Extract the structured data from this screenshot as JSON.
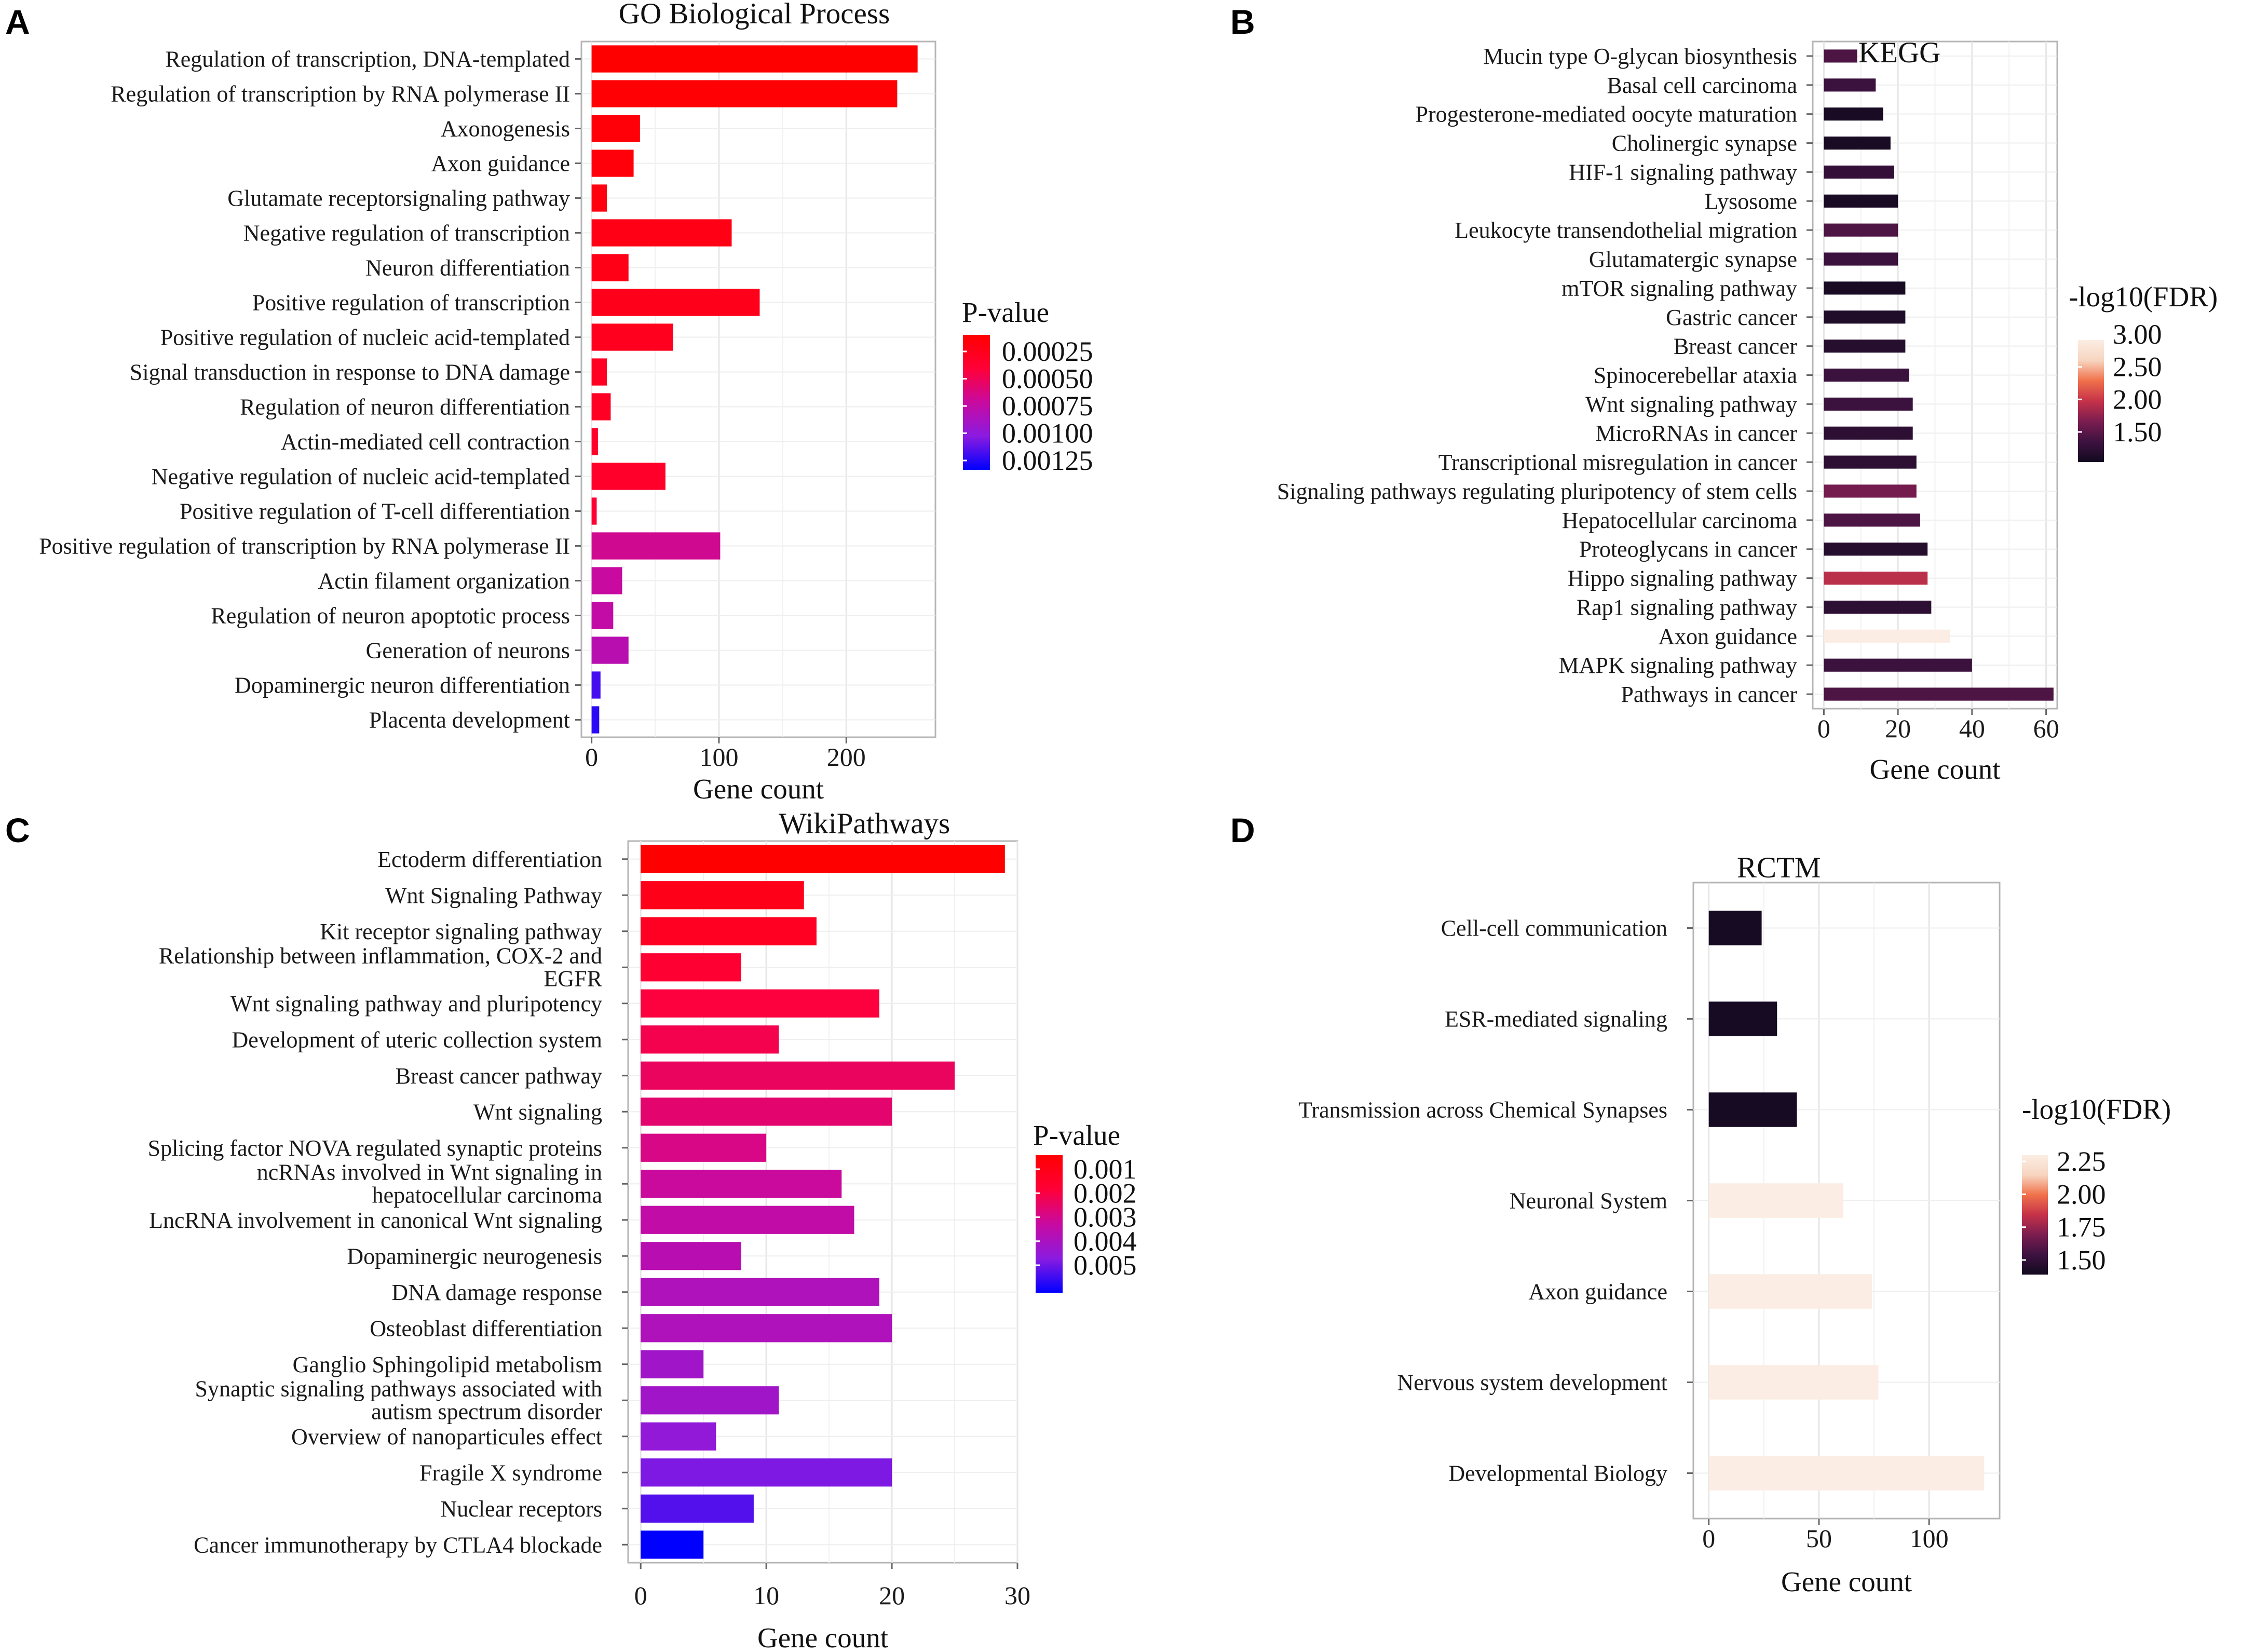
{
  "panel_labels": [
    "A",
    "B",
    "C",
    "D"
  ],
  "chart_data": [
    {
      "panel": "A",
      "type": "bar",
      "orientation": "horizontal",
      "title": "GO Biological Process",
      "xlabel": "Gene count",
      "ylabel": "",
      "xlim": [
        -8,
        270
      ],
      "xticks": [
        0,
        100,
        200
      ],
      "grid": true,
      "color_key": "P-value",
      "color_scale": {
        "type": "continuous",
        "title": "P-value",
        "domain": [
          5e-05,
          0.00145
        ],
        "low_color": "#FF0000",
        "high_color": "#0000FF",
        "stops": [
          "#FF0000",
          "#FF0038",
          "#C80AA0",
          "#8B1BE0",
          "#0000FF"
        ],
        "ticks": [
          "0.00025",
          "0.00050",
          "0.00075",
          "0.00100",
          "0.00125"
        ]
      },
      "categories": [
        "Regulation of transcription, DNA-templated",
        "Regulation of transcription by RNA polymerase II",
        "Axonogenesis",
        "Axon guidance",
        "Glutamate receptorsignaling pathway",
        "Negative regulation of transcription",
        "Neuron differentiation",
        "Positive regulation of transcription",
        "Positive regulation of nucleic acid-templated",
        "Signal transduction in response to DNA damage",
        "Regulation of neuron differentiation",
        "Actin-mediated cell contraction",
        "Negative regulation of nucleic acid-templated",
        "Positive regulation of T-cell differentiation",
        "Positive regulation of transcription by RNA polymerase II",
        "Actin filament organization",
        "Regulation of neuron apoptotic process",
        "Generation of neurons",
        "Dopaminergic neuron differentiation",
        "Placenta development"
      ],
      "values": [
        256,
        240,
        38,
        33,
        12,
        110,
        29,
        132,
        64,
        12,
        15,
        5,
        58,
        4,
        101,
        24,
        17,
        29,
        7,
        6
      ],
      "color_values": [
        5e-05,
        8e-05,
        0.0001,
        0.00012,
        0.00014,
        0.00018,
        0.00019,
        0.00021,
        0.00024,
        0.00026,
        0.00028,
        0.0003,
        0.00032,
        0.00036,
        0.0007,
        0.00075,
        0.00078,
        0.00084,
        0.00128,
        0.00135
      ]
    },
    {
      "panel": "B",
      "type": "bar",
      "orientation": "horizontal",
      "title": "KEGG",
      "xlabel": "Gene count",
      "ylabel": "",
      "xlim": [
        -3,
        63
      ],
      "xticks": [
        0,
        20,
        40,
        60
      ],
      "grid": true,
      "color_key": "-log10(FDR)",
      "color_scale": {
        "type": "continuous",
        "title": "-log10(FDR)",
        "domain": [
          1.3,
          3.2
        ],
        "stops": [
          "#120A1F",
          "#3D1240",
          "#7B1D50",
          "#C63249",
          "#F0714A",
          "#F7D5C0",
          "#FBEDE3"
        ],
        "ticks": [
          "3.00",
          "2.50",
          "2.00",
          "1.50"
        ]
      },
      "categories": [
        "Mucin type O-glycan biosynthesis",
        "Basal cell carcinoma",
        "Progesterone-mediated oocyte maturation",
        "Cholinergic synapse",
        "HIF-1 signaling pathway",
        "Lysosome",
        "Leukocyte transendothelial migration",
        "Glutamatergic synapse",
        "mTOR signaling pathway",
        "Gastric cancer",
        "Breast cancer",
        "Spinocerebellar ataxia",
        "Wnt signaling pathway",
        "MicroRNAs in cancer",
        "Transcriptional misregulation in cancer",
        "Signaling pathways regulating pluripotency of stem cells",
        "Hepatocellular carcinoma",
        "Proteoglycans in cancer",
        "Hippo signaling pathway",
        "Rap1 signaling pathway",
        "Axon guidance",
        "MAPK signaling pathway",
        "Pathways in cancer"
      ],
      "values": [
        9,
        14,
        16,
        18,
        19,
        20,
        20,
        20,
        22,
        22,
        22,
        23,
        24,
        24,
        25,
        25,
        26,
        28,
        28,
        29,
        34,
        40,
        62
      ],
      "color_values": [
        1.7,
        1.6,
        1.35,
        1.35,
        1.55,
        1.35,
        1.7,
        1.6,
        1.35,
        1.4,
        1.45,
        1.6,
        1.6,
        1.5,
        1.5,
        1.9,
        1.7,
        1.45,
        2.2,
        1.5,
        3.2,
        1.6,
        1.7
      ]
    },
    {
      "panel": "C",
      "type": "bar",
      "orientation": "horizontal",
      "title": "WikiPathways",
      "xlabel": "Gene count",
      "ylabel": "",
      "xlim": [
        -1,
        30
      ],
      "xticks": [
        0,
        10,
        20,
        30
      ],
      "grid": true,
      "color_key": "P-value",
      "color_scale": {
        "type": "continuous",
        "title": "P-value",
        "domain": [
          0.0003,
          0.0056
        ],
        "low_color": "#FF0000",
        "high_color": "#0000FF",
        "stops": [
          "#FF0000",
          "#FF0038",
          "#C80AA0",
          "#8B1BE0",
          "#0000FF"
        ],
        "ticks": [
          "0.001",
          "0.002",
          "0.003",
          "0.004",
          "0.005"
        ]
      },
      "categories": [
        "Ectoderm differentiation",
        "Wnt Signaling Pathway",
        "Kit receptor signaling pathway",
        "Relationship between inflammation, COX-2 and EGFR",
        "Wnt signaling pathway and pluripotency",
        "Development of uteric collection system",
        "Breast cancer pathway",
        "Wnt signaling",
        "Splicing factor NOVA regulated synaptic proteins",
        "ncRNAs involved in Wnt signaling in hepatocellular carcinoma",
        "LncRNA involvement in canonical Wnt signaling",
        "Dopaminergic neurogenesis",
        "DNA damage response",
        "Osteoblast differentiation",
        "Ganglio Sphingolipid metabolism",
        "Synaptic signaling pathways associated with autism spectrum disorder",
        "Overview of nanoparticules effect",
        "Fragile X syndrome",
        "Nuclear receptors",
        "Cancer immunotherapy by CTLA4 blockade"
      ],
      "values": [
        29,
        13,
        14,
        8,
        19,
        11,
        25,
        20,
        10,
        16,
        17,
        8,
        19,
        20,
        5,
        11,
        6,
        20,
        9,
        5
      ],
      "color_values": [
        0.0003,
        0.0009,
        0.0011,
        0.0015,
        0.0017,
        0.0019,
        0.0021,
        0.0023,
        0.0026,
        0.0029,
        0.0031,
        0.0033,
        0.0035,
        0.0035,
        0.0038,
        0.0038,
        0.0041,
        0.0044,
        0.0048,
        0.0056
      ]
    },
    {
      "panel": "D",
      "type": "bar",
      "orientation": "horizontal",
      "title": "RCTM",
      "xlabel": "Gene count",
      "ylabel": "",
      "xlim": [
        -7,
        132
      ],
      "xticks": [
        0,
        50,
        100
      ],
      "grid": true,
      "color_key": "-log10(FDR)",
      "color_scale": {
        "type": "continuous",
        "title": "-log10(FDR)",
        "domain": [
          1.4,
          2.35
        ],
        "stops": [
          "#120A1F",
          "#3D1240",
          "#7B1D50",
          "#C63249",
          "#F0714A",
          "#F7D5C0",
          "#FBEDE3"
        ],
        "ticks": [
          "2.25",
          "2.00",
          "1.75",
          "1.50"
        ]
      },
      "categories": [
        "Cell-cell communication",
        "ESR-mediated  signaling",
        "Transmission across Chemical Synapses",
        "Neuronal System",
        "Axon guidance",
        "Nervous system development",
        "Developmental Biology"
      ],
      "values": [
        24,
        31,
        40,
        61,
        74,
        77,
        125
      ],
      "color_values": [
        1.42,
        1.42,
        1.42,
        2.35,
        2.35,
        2.35,
        2.35
      ]
    }
  ]
}
